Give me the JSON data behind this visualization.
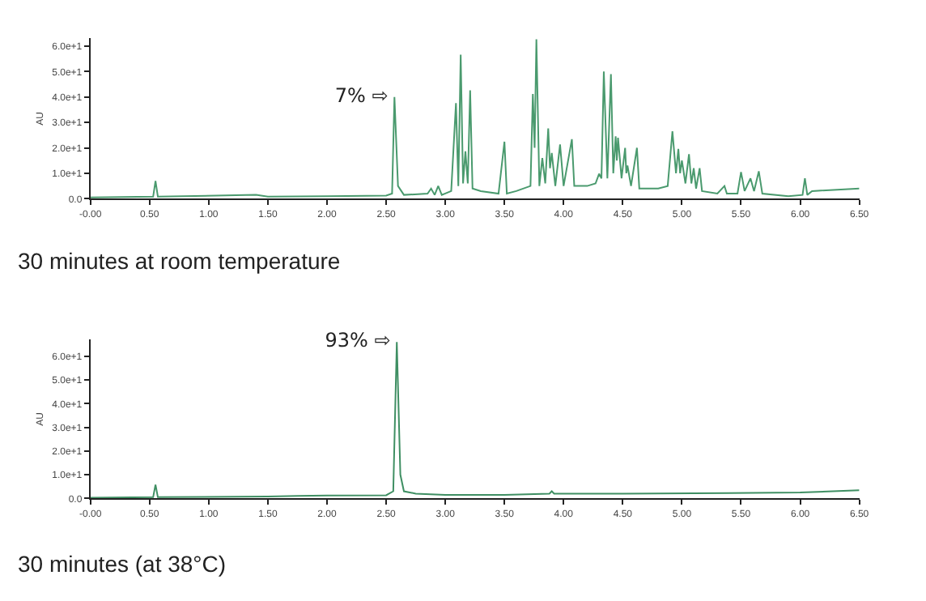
{
  "chart_data": [
    {
      "type": "line",
      "ylabel": "AU",
      "xlim": [
        0,
        6.5
      ],
      "ylim": [
        0,
        63
      ],
      "xticks": [
        {
          "value": 0,
          "label": "-0.00"
        },
        {
          "value": 0.5,
          "label": "0.50"
        },
        {
          "value": 1,
          "label": "1.00"
        },
        {
          "value": 1.5,
          "label": "1.50"
        },
        {
          "value": 2,
          "label": "2.00"
        },
        {
          "value": 2.5,
          "label": "2.50"
        },
        {
          "value": 3,
          "label": "3.00"
        },
        {
          "value": 3.5,
          "label": "3.50"
        },
        {
          "value": 4,
          "label": "4.00"
        },
        {
          "value": 4.5,
          "label": "4.50"
        },
        {
          "value": 5,
          "label": "5.00"
        },
        {
          "value": 5.5,
          "label": "5.50"
        },
        {
          "value": 6,
          "label": "6.00"
        },
        {
          "value": 6.5,
          "label": "6.50"
        }
      ],
      "yticks": [
        {
          "value": 0,
          "label": "0.0"
        },
        {
          "value": 10,
          "label": "1.0e+1"
        },
        {
          "value": 20,
          "label": "2.0e+1"
        },
        {
          "value": 30,
          "label": "3.0e+1"
        },
        {
          "value": 40,
          "label": "4.0e+1"
        },
        {
          "value": 50,
          "label": "5.0e+1"
        },
        {
          "value": 60,
          "label": "6.0e+1"
        }
      ],
      "annotations": [
        {
          "text": "7% ⇨",
          "x": 2.57,
          "y": 40
        },
        "30 minutes at room temperature"
      ],
      "series": [
        {
          "color": "#4a9a6e",
          "x": [
            0,
            0.53,
            0.55,
            0.57,
            1.4,
            1.5,
            2.0,
            2.5,
            2.55,
            2.57,
            2.6,
            2.65,
            2.85,
            2.88,
            2.91,
            2.94,
            2.97,
            3.05,
            3.09,
            3.11,
            3.13,
            3.15,
            3.17,
            3.19,
            3.21,
            3.23,
            3.3,
            3.45,
            3.5,
            3.52,
            3.6,
            3.72,
            3.74,
            3.755,
            3.77,
            3.795,
            3.82,
            3.845,
            3.87,
            3.885,
            3.9,
            3.93,
            3.97,
            4.0,
            4.07,
            4.09,
            4.2,
            4.27,
            4.3,
            4.32,
            4.34,
            4.37,
            4.4,
            4.42,
            4.44,
            4.45,
            4.46,
            4.49,
            4.52,
            4.53,
            4.54,
            4.57,
            4.62,
            4.64,
            4.8,
            4.88,
            4.92,
            4.95,
            4.97,
            4.985,
            5.0,
            5.03,
            5.06,
            5.08,
            5.1,
            5.12,
            5.15,
            5.17,
            5.3,
            5.36,
            5.38,
            5.47,
            5.5,
            5.53,
            5.58,
            5.61,
            5.65,
            5.68,
            5.9,
            6.02,
            6.04,
            6.06,
            6.1,
            6.5
          ],
          "values": [
            0.5,
            0.8,
            7,
            0.8,
            1.5,
            0.8,
            1,
            1.2,
            2,
            40,
            5,
            1.5,
            2,
            4,
            1.5,
            5,
            1.5,
            3,
            37.6,
            5,
            56.6,
            6,
            18.6,
            6,
            42.6,
            4,
            3,
            2,
            22.4,
            2,
            3,
            5,
            41.2,
            20,
            62.7,
            5,
            16,
            6,
            27.6,
            12,
            18,
            5,
            21.3,
            5,
            23.4,
            5,
            5,
            6,
            9.8,
            8,
            50,
            8,
            49,
            10,
            24.5,
            15,
            24,
            8,
            20,
            10,
            13,
            5,
            20,
            4,
            4,
            5,
            26.5,
            10,
            19.6,
            10,
            15,
            6,
            17.5,
            6,
            12,
            4,
            12,
            3,
            2,
            5,
            2,
            2,
            10.5,
            3,
            8,
            3,
            10.8,
            2,
            1,
            1.5,
            8,
            1.5,
            3,
            4
          ]
        }
      ]
    },
    {
      "type": "line",
      "ylabel": "AU",
      "xlim": [
        0,
        6.5
      ],
      "ylim": [
        0,
        67
      ],
      "xticks": [
        {
          "value": 0,
          "label": "-0.00"
        },
        {
          "value": 0.5,
          "label": "0.50"
        },
        {
          "value": 1,
          "label": "1.00"
        },
        {
          "value": 1.5,
          "label": "1.50"
        },
        {
          "value": 2,
          "label": "2.00"
        },
        {
          "value": 2.5,
          "label": "2.50"
        },
        {
          "value": 3,
          "label": "3.00"
        },
        {
          "value": 3.5,
          "label": "3.50"
        },
        {
          "value": 4,
          "label": "4.00"
        },
        {
          "value": 4.5,
          "label": "4.50"
        },
        {
          "value": 5,
          "label": "5.00"
        },
        {
          "value": 5.5,
          "label": "5.50"
        },
        {
          "value": 6,
          "label": "6.00"
        },
        {
          "value": 6.5,
          "label": "6.50"
        }
      ],
      "yticks": [
        {
          "value": 0,
          "label": "0.0"
        },
        {
          "value": 10,
          "label": "1.0e+1"
        },
        {
          "value": 20,
          "label": "2.0e+1"
        },
        {
          "value": 30,
          "label": "3.0e+1"
        },
        {
          "value": 40,
          "label": "4.0e+1"
        },
        {
          "value": 50,
          "label": "5.0e+1"
        },
        {
          "value": 60,
          "label": "6.0e+1"
        }
      ],
      "annotations": [
        {
          "text": "93% ⇨",
          "x": 2.59,
          "y": 66
        },
        "30 minutes (at 38°C)"
      ],
      "series": [
        {
          "color": "#3f8f63",
          "x": [
            0,
            0.53,
            0.55,
            0.57,
            1.5,
            1.75,
            2.0,
            2.5,
            2.56,
            2.59,
            2.62,
            2.65,
            2.75,
            3.0,
            3.5,
            3.88,
            3.9,
            3.92,
            4.5,
            5.4,
            6.0,
            6.5
          ],
          "values": [
            0.3,
            0.5,
            5.8,
            0.5,
            0.8,
            1,
            1.2,
            1.3,
            3,
            66,
            10,
            3,
            2,
            1.5,
            1.5,
            2,
            3,
            2,
            2,
            2.2,
            2.5,
            3.4
          ]
        }
      ]
    }
  ]
}
